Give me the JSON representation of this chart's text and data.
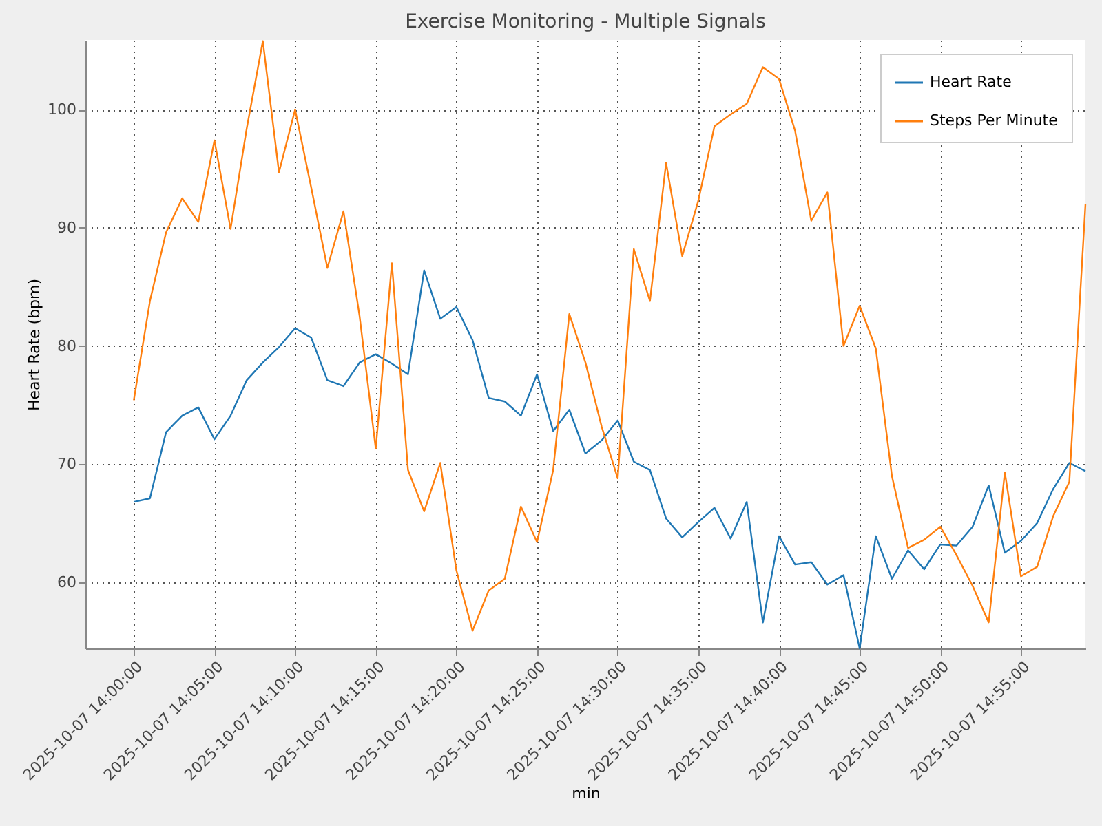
{
  "chart_data": {
    "type": "line",
    "title": "Exercise Monitoring - Multiple Signals",
    "xlabel": "min",
    "ylabel": "Heart Rate (bpm)",
    "x": [
      "2025-10-07T14:00",
      "2025-10-07T14:01",
      "2025-10-07T14:02",
      "2025-10-07T14:03",
      "2025-10-07T14:04",
      "2025-10-07T14:05",
      "2025-10-07T14:06",
      "2025-10-07T14:07",
      "2025-10-07T14:08",
      "2025-10-07T14:09",
      "2025-10-07T14:10",
      "2025-10-07T14:11",
      "2025-10-07T14:12",
      "2025-10-07T14:13",
      "2025-10-07T14:14",
      "2025-10-07T14:15",
      "2025-10-07T14:16",
      "2025-10-07T14:17",
      "2025-10-07T14:18",
      "2025-10-07T14:19",
      "2025-10-07T14:20",
      "2025-10-07T14:21",
      "2025-10-07T14:22",
      "2025-10-07T14:23",
      "2025-10-07T14:24",
      "2025-10-07T14:25",
      "2025-10-07T14:26",
      "2025-10-07T14:27",
      "2025-10-07T14:28",
      "2025-10-07T14:29",
      "2025-10-07T14:30",
      "2025-10-07T14:31",
      "2025-10-07T14:32",
      "2025-10-07T14:33",
      "2025-10-07T14:34",
      "2025-10-07T14:35",
      "2025-10-07T14:36",
      "2025-10-07T14:37",
      "2025-10-07T14:38",
      "2025-10-07T14:39",
      "2025-10-07T14:40",
      "2025-10-07T14:41",
      "2025-10-07T14:42",
      "2025-10-07T14:43",
      "2025-10-07T14:44",
      "2025-10-07T14:45",
      "2025-10-07T14:46",
      "2025-10-07T14:47",
      "2025-10-07T14:48",
      "2025-10-07T14:49",
      "2025-10-07T14:50",
      "2025-10-07T14:51",
      "2025-10-07T14:52",
      "2025-10-07T14:53",
      "2025-10-07T14:54",
      "2025-10-07T14:55",
      "2025-10-07T14:56",
      "2025-10-07T14:57",
      "2025-10-07T14:58",
      "2025-10-07T14:59"
    ],
    "series": [
      {
        "name": "Heart Rate",
        "color": "#1f77b4",
        "values": [
          66.8,
          67.1,
          72.7,
          74.1,
          74.8,
          72.1,
          74.1,
          77.1,
          78.6,
          79.9,
          81.5,
          80.7,
          77.1,
          76.6,
          78.6,
          79.3,
          78.5,
          77.6,
          86.4,
          82.3,
          83.3,
          80.5,
          75.6,
          75.3,
          74.1,
          77.6,
          72.8,
          74.6,
          70.9,
          72.0,
          73.7,
          70.2,
          69.5,
          65.4,
          63.8,
          65.1,
          66.3,
          63.7,
          66.8,
          56.6,
          63.9,
          61.5,
          61.7,
          59.8,
          60.6,
          54.4,
          63.9,
          60.3,
          62.7,
          61.1,
          63.2,
          63.1,
          64.7,
          68.2,
          62.5,
          63.5,
          65.0,
          67.9,
          70.1,
          69.4
        ]
      },
      {
        "name": "Steps Per Minute",
        "color": "#ff7f0e",
        "values": [
          75.4,
          83.8,
          89.6,
          92.5,
          90.5,
          97.4,
          89.9,
          98.4,
          105.8,
          94.7,
          100.0,
          93.4,
          86.6,
          91.4,
          82.5,
          71.3,
          87.0,
          69.5,
          66.0,
          70.1,
          61.0,
          55.9,
          59.3,
          60.3,
          66.4,
          63.4,
          69.5,
          82.7,
          78.6,
          73.2,
          68.8,
          88.2,
          83.8,
          95.5,
          87.6,
          92.3,
          98.6,
          99.6,
          100.5,
          103.6,
          102.6,
          98.2,
          90.6,
          93.0,
          80.0,
          83.4,
          79.8,
          69.0,
          62.9,
          63.6,
          64.7,
          62.3,
          59.7,
          56.6,
          69.3,
          60.5,
          61.3,
          65.6,
          68.5,
          92.0
        ]
      }
    ],
    "xlim": [
      "2025-10-07T13:57",
      "2025-10-07T14:59"
    ],
    "xticks": [
      {
        "value": "2025-10-07T14:00",
        "label": "2025-10-07 14:00:00"
      },
      {
        "value": "2025-10-07T14:05",
        "label": "2025-10-07 14:05:00"
      },
      {
        "value": "2025-10-07T14:10",
        "label": "2025-10-07 14:10:00"
      },
      {
        "value": "2025-10-07T14:15",
        "label": "2025-10-07 14:15:00"
      },
      {
        "value": "2025-10-07T14:20",
        "label": "2025-10-07 14:20:00"
      },
      {
        "value": "2025-10-07T14:25",
        "label": "2025-10-07 14:25:00"
      },
      {
        "value": "2025-10-07T14:30",
        "label": "2025-10-07 14:30:00"
      },
      {
        "value": "2025-10-07T14:35",
        "label": "2025-10-07 14:35:00"
      },
      {
        "value": "2025-10-07T14:40",
        "label": "2025-10-07 14:40:00"
      },
      {
        "value": "2025-10-07T14:45",
        "label": "2025-10-07 14:45:00"
      },
      {
        "value": "2025-10-07T14:50",
        "label": "2025-10-07 14:50:00"
      },
      {
        "value": "2025-10-07T14:55",
        "label": "2025-10-07 14:55:00"
      }
    ],
    "ylim": [
      54.4,
      105.9
    ],
    "yticks": [
      60,
      70,
      80,
      90,
      100
    ],
    "grid": true,
    "legend": "top right",
    "line_style": "solid"
  }
}
